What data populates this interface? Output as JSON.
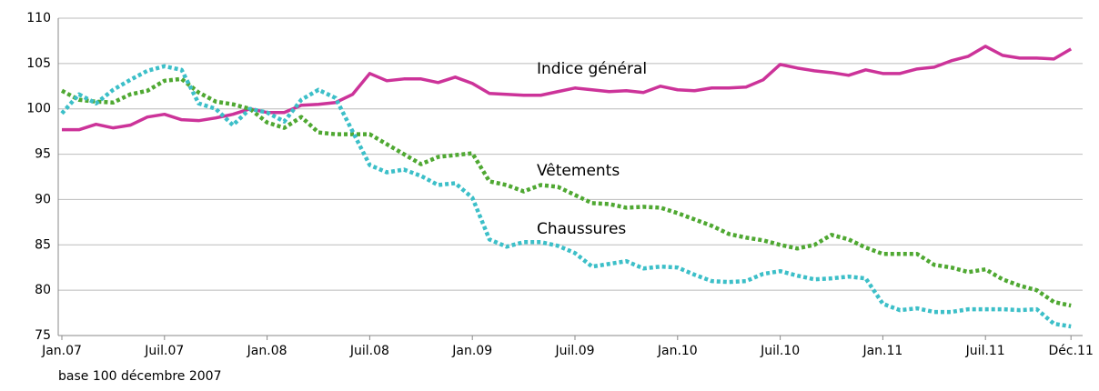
{
  "chart_data": {
    "type": "line",
    "categories": [
      "Jan.07",
      null,
      null,
      null,
      null,
      null,
      "Juil.07",
      null,
      null,
      null,
      null,
      null,
      "Jan.08",
      null,
      null,
      null,
      null,
      null,
      "Juil.08",
      null,
      null,
      null,
      null,
      null,
      "Jan.09",
      null,
      null,
      null,
      null,
      null,
      "Juil.09",
      null,
      null,
      null,
      null,
      null,
      "Jan.10",
      null,
      null,
      null,
      null,
      null,
      "Juil.10",
      null,
      null,
      null,
      null,
      null,
      "Jan.11",
      null,
      null,
      null,
      null,
      null,
      "Juil.11",
      null,
      null,
      null,
      null,
      "Déc.11"
    ],
    "series": [
      {
        "name": "Indice général",
        "color": "#cc3399",
        "style": "solid",
        "values": [
          97.7,
          97.7,
          98.3,
          97.9,
          98.2,
          99.1,
          99.4,
          98.8,
          98.7,
          99.0,
          99.4,
          100.0,
          99.6,
          99.6,
          100.4,
          100.5,
          100.7,
          101.6,
          103.9,
          103.1,
          103.3,
          103.3,
          102.9,
          103.5,
          102.8,
          101.7,
          101.6,
          101.5,
          101.5,
          101.9,
          102.3,
          102.1,
          101.9,
          102.0,
          101.8,
          102.5,
          102.1,
          102.0,
          102.3,
          102.3,
          102.4,
          103.2,
          104.9,
          104.5,
          104.2,
          104.0,
          103.7,
          104.3,
          103.9,
          103.9,
          104.4,
          104.6,
          105.3,
          105.8,
          106.9,
          105.9,
          105.6,
          105.6,
          105.5,
          106.6
        ]
      },
      {
        "name": "Vêtements",
        "color": "#4fa832",
        "style": "dotted",
        "values": [
          102.0,
          101.0,
          100.8,
          100.7,
          101.6,
          102.0,
          103.1,
          103.3,
          101.8,
          100.8,
          100.5,
          100.0,
          98.5,
          97.9,
          99.1,
          97.4,
          97.2,
          97.2,
          97.2,
          96.1,
          95.0,
          93.9,
          94.7,
          94.9,
          95.1,
          92.0,
          91.6,
          90.9,
          91.6,
          91.4,
          90.5,
          89.6,
          89.5,
          89.1,
          89.2,
          89.1,
          88.5,
          87.8,
          87.1,
          86.2,
          85.8,
          85.5,
          85.0,
          84.6,
          85.0,
          86.1,
          85.6,
          84.7,
          84.0,
          84.0,
          84.0,
          82.8,
          82.5,
          82.0,
          82.3,
          81.2,
          80.5,
          80.0,
          78.7,
          78.3
        ]
      },
      {
        "name": "Chaussures",
        "color": "#3cbfc8",
        "style": "dotted",
        "values": [
          99.5,
          101.6,
          100.6,
          102.1,
          103.2,
          104.2,
          104.7,
          104.3,
          100.6,
          100.0,
          98.2,
          100.0,
          99.6,
          98.6,
          101.0,
          102.1,
          101.2,
          97.5,
          93.8,
          93.0,
          93.3,
          92.6,
          91.6,
          91.8,
          90.2,
          85.6,
          84.8,
          85.3,
          85.3,
          84.9,
          84.1,
          82.6,
          82.9,
          83.2,
          82.4,
          82.6,
          82.5,
          81.7,
          81.0,
          80.9,
          81.0,
          81.8,
          82.1,
          81.6,
          81.2,
          81.3,
          81.5,
          81.3,
          78.5,
          77.8,
          78.0,
          77.6,
          77.6,
          77.9,
          77.9,
          77.9,
          77.8,
          77.9,
          76.3,
          76.0
        ]
      }
    ],
    "ylim": [
      75,
      110
    ],
    "yticks": [
      75,
      80,
      85,
      90,
      95,
      100,
      105,
      110
    ],
    "grid": true,
    "note": "base 100 décembre 2007"
  }
}
